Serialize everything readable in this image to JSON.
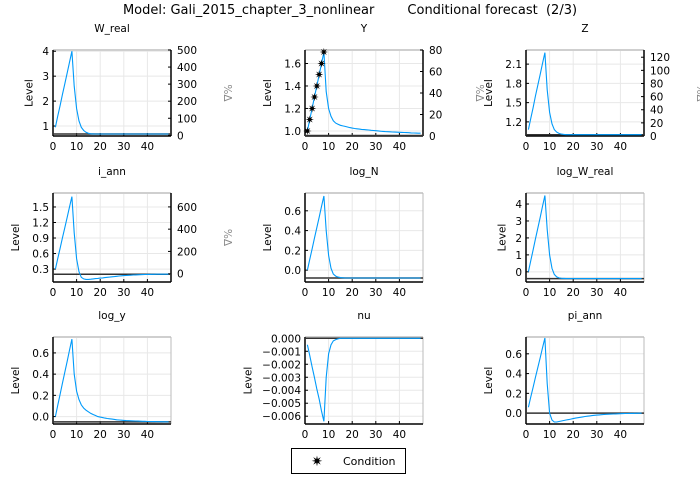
{
  "title": "Model: Gali_2015_chapter_3_nonlinear        Conditional forecast  (2/3)",
  "legend": {
    "label": "Condition",
    "marker": "star",
    "position": "bottom-center"
  },
  "colors": {
    "series": "#009AFA",
    "steady_state": "#333333",
    "condition": "#000000",
    "grid": "#e6e6e6"
  },
  "chart_data": [
    {
      "type": "line",
      "title": "W_real",
      "ylabel": "Level",
      "y2label": "%Δ",
      "xlim": [
        0,
        50
      ],
      "ylim": [
        0.6,
        4.05
      ],
      "xticks": [
        "0",
        "10",
        "20",
        "30",
        "40"
      ],
      "yticks": [
        "1",
        "2",
        "3",
        "4"
      ],
      "y2lim": [
        -4,
        500
      ],
      "y2ticks": [
        "0",
        "100",
        "200",
        "300",
        "400",
        "500"
      ],
      "grid": true,
      "steady_state": 0.68,
      "x": "1..49",
      "values": [
        0.95,
        1.39,
        1.82,
        2.26,
        2.69,
        3.13,
        3.56,
        4.0,
        2.6,
        1.7,
        1.2,
        0.95,
        0.82,
        0.75,
        0.71,
        0.69,
        0.685,
        0.68,
        0.68,
        0.68,
        0.68,
        0.68,
        0.68,
        0.68,
        0.68,
        0.68,
        0.68,
        0.68,
        0.68,
        0.68,
        0.68,
        0.68,
        0.68,
        0.68,
        0.68,
        0.68,
        0.68,
        0.68,
        0.68,
        0.68,
        0.68,
        0.68,
        0.68,
        0.68,
        0.68,
        0.68,
        0.68,
        0.68,
        0.68
      ]
    },
    {
      "type": "line",
      "title": "Y",
      "ylabel": "Level",
      "y2label": "%Δ",
      "xlim": [
        0,
        50
      ],
      "ylim": [
        0.955,
        1.72
      ],
      "xticks": [
        "0",
        "10",
        "20",
        "30",
        "40"
      ],
      "yticks": [
        "1.0",
        "1.2",
        "1.4",
        "1.6"
      ],
      "y2lim": [
        0,
        80
      ],
      "y2ticks": [
        "0",
        "20",
        "40",
        "60",
        "80"
      ],
      "grid": true,
      "steady_state": 0.96,
      "values": [
        1.0,
        1.1,
        1.2,
        1.3,
        1.4,
        1.5,
        1.6,
        1.7,
        1.35,
        1.2,
        1.13,
        1.09,
        1.07,
        1.06,
        1.05,
        1.045,
        1.04,
        1.035,
        1.03,
        1.025,
        1.022,
        1.019,
        1.016,
        1.014,
        1.012,
        1.01,
        1.008,
        1.006,
        1.004,
        1.002,
        1.0,
        0.998,
        0.996,
        0.994,
        0.993,
        0.992,
        0.991,
        0.99,
        0.989,
        0.988,
        0.987,
        0.986,
        0.985,
        0.984,
        0.983,
        0.982,
        0.981,
        0.98,
        0.98
      ],
      "conditions": {
        "x": [
          1,
          2,
          3,
          4,
          5,
          6,
          7,
          8
        ],
        "values": [
          1.0,
          1.1,
          1.2,
          1.3,
          1.4,
          1.5,
          1.6,
          1.7
        ]
      }
    },
    {
      "type": "line",
      "title": "Z",
      "ylabel": "Level",
      "y2label": "%Δ",
      "xlim": [
        0,
        50
      ],
      "ylim": [
        0.98,
        2.32
      ],
      "xticks": [
        "0",
        "10",
        "20",
        "30",
        "40"
      ],
      "yticks": [
        "1.2",
        "1.5",
        "1.8",
        "2.1"
      ],
      "y2lim": [
        0,
        131
      ],
      "y2ticks": [
        "0",
        "20",
        "40",
        "60",
        "80",
        "100",
        "120"
      ],
      "grid": true,
      "steady_state": 1.0,
      "values": [
        1.08,
        1.25,
        1.42,
        1.6,
        1.77,
        1.94,
        2.11,
        2.28,
        1.7,
        1.35,
        1.17,
        1.08,
        1.04,
        1.02,
        1.01,
        1.005,
        1.0,
        1.0,
        1.0,
        1.0,
        1.0,
        1.0,
        1.0,
        1.0,
        1.0,
        1.0,
        1.0,
        1.0,
        1.0,
        1.0,
        1.0,
        1.0,
        1.0,
        1.0,
        1.0,
        1.0,
        1.0,
        1.0,
        1.0,
        1.0,
        1.0,
        1.0,
        1.0,
        1.0,
        1.0,
        1.0,
        1.0,
        1.0,
        1.0
      ]
    },
    {
      "type": "line",
      "title": "i_ann",
      "ylabel": "Level",
      "y2label": "%Δ",
      "xlim": [
        0,
        50
      ],
      "ylim": [
        0.05,
        1.77
      ],
      "xticks": [
        "0",
        "10",
        "20",
        "30",
        "40"
      ],
      "yticks": [
        "0.3",
        "0.6",
        "0.9",
        "1.2",
        "1.5"
      ],
      "y2lim": [
        -75,
        725
      ],
      "y2ticks": [
        "0",
        "200",
        "400",
        "600"
      ],
      "grid": true,
      "steady_state": 0.2,
      "values": [
        0.3,
        0.5,
        0.7,
        0.9,
        1.1,
        1.3,
        1.5,
        1.7,
        1.0,
        0.5,
        0.25,
        0.14,
        0.11,
        0.1,
        0.1,
        0.105,
        0.11,
        0.115,
        0.12,
        0.125,
        0.13,
        0.135,
        0.14,
        0.145,
        0.15,
        0.155,
        0.16,
        0.165,
        0.17,
        0.173,
        0.176,
        0.179,
        0.182,
        0.185,
        0.187,
        0.189,
        0.191,
        0.193,
        0.195,
        0.196,
        0.197,
        0.198,
        0.199,
        0.2,
        0.2,
        0.2,
        0.2,
        0.2,
        0.2
      ]
    },
    {
      "type": "line",
      "title": "log_N",
      "ylabel": "Level",
      "xlim": [
        0,
        50
      ],
      "ylim": [
        -0.12,
        0.78
      ],
      "xticks": [
        "0",
        "10",
        "20",
        "30",
        "40"
      ],
      "yticks": [
        "0.0",
        "0.2",
        "0.4",
        "0.6"
      ],
      "grid": true,
      "steady_state": -0.08,
      "values": [
        0,
        0.107,
        0.214,
        0.321,
        0.429,
        0.536,
        0.643,
        0.75,
        0.4,
        0.15,
        0.02,
        -0.04,
        -0.06,
        -0.07,
        -0.075,
        -0.078,
        -0.08,
        -0.08,
        -0.08,
        -0.08,
        -0.08,
        -0.08,
        -0.08,
        -0.08,
        -0.08,
        -0.08,
        -0.08,
        -0.08,
        -0.08,
        -0.08,
        -0.08,
        -0.08,
        -0.08,
        -0.08,
        -0.08,
        -0.08,
        -0.08,
        -0.08,
        -0.08,
        -0.08,
        -0.08,
        -0.08,
        -0.08,
        -0.08,
        -0.08,
        -0.08,
        -0.08,
        -0.08,
        -0.08
      ]
    },
    {
      "type": "line",
      "title": "log_W_real",
      "ylabel": "Level",
      "xlim": [
        0,
        50
      ],
      "ylim": [
        -0.6,
        4.65
      ],
      "xticks": [
        "0",
        "10",
        "20",
        "30",
        "40"
      ],
      "yticks": [
        "0",
        "1",
        "2",
        "3",
        "4"
      ],
      "grid": true,
      "steady_state": -0.4,
      "values": [
        0,
        0.64,
        1.29,
        1.93,
        2.57,
        3.21,
        3.86,
        4.5,
        2.5,
        1.0,
        0.2,
        -0.15,
        -0.3,
        -0.36,
        -0.38,
        -0.39,
        -0.4,
        -0.4,
        -0.4,
        -0.4,
        -0.4,
        -0.4,
        -0.4,
        -0.4,
        -0.4,
        -0.4,
        -0.4,
        -0.4,
        -0.4,
        -0.4,
        -0.4,
        -0.4,
        -0.4,
        -0.4,
        -0.4,
        -0.4,
        -0.4,
        -0.4,
        -0.4,
        -0.4,
        -0.4,
        -0.4,
        -0.4,
        -0.4,
        -0.4,
        -0.4,
        -0.4,
        -0.4,
        -0.4
      ]
    },
    {
      "type": "line",
      "title": "log_y",
      "ylabel": "Level",
      "xlim": [
        0,
        50
      ],
      "ylim": [
        -0.07,
        0.75
      ],
      "xticks": [
        "0",
        "10",
        "20",
        "30",
        "40"
      ],
      "yticks": [
        "0.0",
        "0.2",
        "0.4",
        "0.6"
      ],
      "grid": true,
      "steady_state": -0.05,
      "values": [
        0,
        0.104,
        0.209,
        0.313,
        0.417,
        0.521,
        0.626,
        0.73,
        0.4,
        0.24,
        0.16,
        0.11,
        0.08,
        0.06,
        0.045,
        0.03,
        0.02,
        0.01,
        0.0,
        -0.005,
        -0.01,
        -0.014,
        -0.018,
        -0.021,
        -0.024,
        -0.027,
        -0.03,
        -0.032,
        -0.034,
        -0.036,
        -0.038,
        -0.039,
        -0.04,
        -0.041,
        -0.042,
        -0.043,
        -0.044,
        -0.045,
        -0.045,
        -0.046,
        -0.046,
        -0.047,
        -0.047,
        -0.048,
        -0.048,
        -0.048,
        -0.049,
        -0.049,
        -0.049
      ]
    },
    {
      "type": "line",
      "title": "nu",
      "ylabel": "Level",
      "xlim": [
        0,
        50
      ],
      "ylim": [
        -0.0066,
        0.0001
      ],
      "xticks": [
        "0",
        "10",
        "20",
        "30",
        "40"
      ],
      "yticks": [
        "0.000",
        "−0.001",
        "−0.002",
        "−0.003",
        "−0.004",
        "−0.005",
        "−0.006"
      ],
      "grid": true,
      "steady_state": 0,
      "values": [
        -0.0005,
        -0.0013,
        -0.0022,
        -0.003,
        -0.0039,
        -0.0047,
        -0.0056,
        -0.0064,
        -0.003,
        -0.0012,
        -0.0005,
        -0.0002,
        -0.0001,
        -5e-05,
        0,
        0,
        0,
        0,
        0,
        0,
        0,
        0,
        0,
        0,
        0,
        0,
        0,
        0,
        0,
        0,
        0,
        0,
        0,
        0,
        0,
        0,
        0,
        0,
        0,
        0,
        0,
        0,
        0,
        0,
        0,
        0,
        0,
        0,
        0
      ]
    },
    {
      "type": "line",
      "title": "pi_ann",
      "ylabel": "Level",
      "xlim": [
        0,
        50
      ],
      "ylim": [
        -0.11,
        0.77
      ],
      "xticks": [
        "0",
        "10",
        "20",
        "30",
        "40"
      ],
      "yticks": [
        "0.0",
        "0.2",
        "0.4",
        "0.6"
      ],
      "grid": true,
      "steady_state": 0,
      "values": [
        0.06,
        0.16,
        0.26,
        0.36,
        0.46,
        0.56,
        0.66,
        0.76,
        0.3,
        0.0,
        -0.07,
        -0.09,
        -0.09,
        -0.085,
        -0.08,
        -0.075,
        -0.07,
        -0.065,
        -0.06,
        -0.055,
        -0.05,
        -0.046,
        -0.042,
        -0.038,
        -0.034,
        -0.031,
        -0.028,
        -0.025,
        -0.022,
        -0.02,
        -0.018,
        -0.016,
        -0.014,
        -0.012,
        -0.011,
        -0.01,
        -0.009,
        -0.008,
        -0.007,
        -0.006,
        -0.005,
        -0.004,
        -0.004,
        -0.003,
        -0.003,
        -0.002,
        -0.002,
        -0.001,
        -0.001
      ]
    }
  ]
}
